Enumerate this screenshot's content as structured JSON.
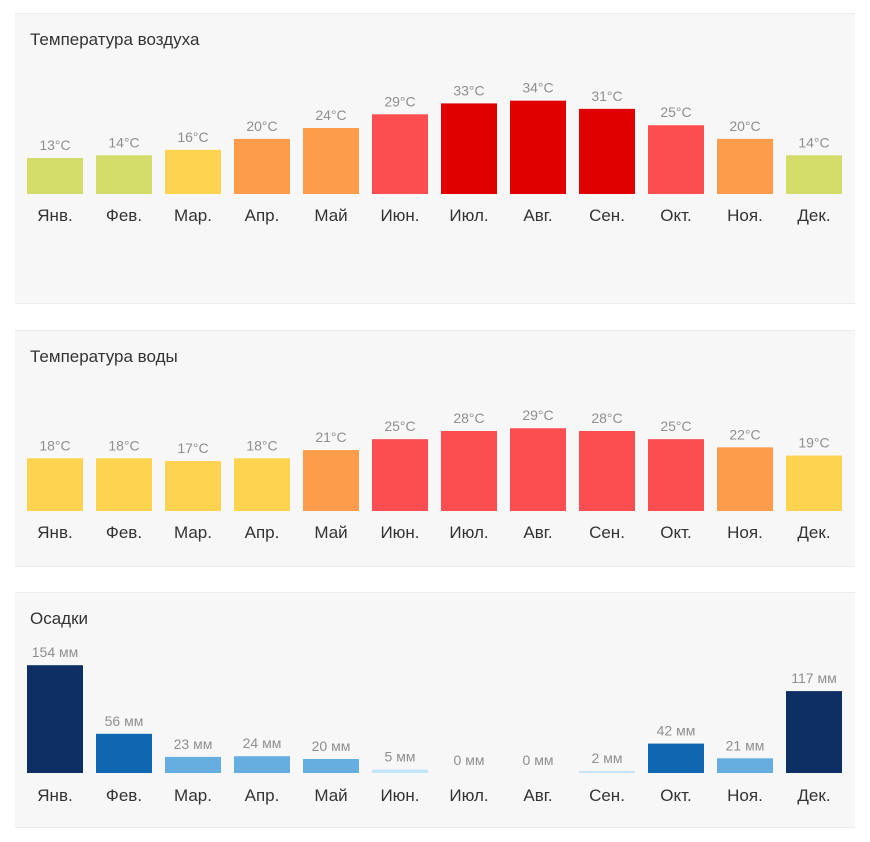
{
  "chart_data": [
    {
      "type": "bar",
      "title": "Температура воздуха",
      "categories": [
        "Янв.",
        "Фев.",
        "Мар.",
        "Апр.",
        "Май",
        "Июн.",
        "Июл.",
        "Авг.",
        "Сен.",
        "Окт.",
        "Ноя.",
        "Дек."
      ],
      "values": [
        13,
        14,
        16,
        20,
        24,
        29,
        33,
        34,
        31,
        25,
        20,
        14
      ],
      "labels": [
        "13°C",
        "14°C",
        "16°C",
        "20°C",
        "24°C",
        "29°C",
        "33°C",
        "34°C",
        "31°C",
        "25°C",
        "20°C",
        "14°C"
      ],
      "colors": [
        "#d4dc6a",
        "#d4dc6a",
        "#fdd34f",
        "#fd9c4a",
        "#fd9c4a",
        "#fc4d51",
        "#e00000",
        "#e00000",
        "#e00000",
        "#fc4d51",
        "#fd9c4a",
        "#d4dc6a"
      ],
      "unit": "°C",
      "xlabel": "",
      "ylabel": ""
    },
    {
      "type": "bar",
      "title": "Температура воды",
      "categories": [
        "Янв.",
        "Фев.",
        "Мар.",
        "Апр.",
        "Май",
        "Июн.",
        "Июл.",
        "Авг.",
        "Сен.",
        "Окт.",
        "Ноя.",
        "Дек."
      ],
      "values": [
        18,
        18,
        17,
        18,
        21,
        25,
        28,
        29,
        28,
        25,
        22,
        19
      ],
      "labels": [
        "18°C",
        "18°C",
        "17°C",
        "18°C",
        "21°C",
        "25°C",
        "28°C",
        "29°C",
        "28°C",
        "25°C",
        "22°C",
        "19°C"
      ],
      "colors": [
        "#fdd34f",
        "#fdd34f",
        "#fdd34f",
        "#fdd34f",
        "#fd9c4a",
        "#fc4d51",
        "#fc4d51",
        "#fc4d51",
        "#fc4d51",
        "#fc4d51",
        "#fd9c4a",
        "#fdd34f"
      ],
      "unit": "°C",
      "xlabel": "",
      "ylabel": ""
    },
    {
      "type": "bar",
      "title": "Осадки",
      "categories": [
        "Янв.",
        "Фев.",
        "Мар.",
        "Апр.",
        "Май",
        "Июн.",
        "Июл.",
        "Авг.",
        "Сен.",
        "Окт.",
        "Ноя.",
        "Дек."
      ],
      "values": [
        154,
        56,
        23,
        24,
        20,
        5,
        0,
        0,
        2,
        42,
        21,
        117
      ],
      "labels": [
        "154 мм",
        "56 мм",
        "23 мм",
        "24 мм",
        "20 мм",
        "5 мм",
        "0 мм",
        "0 мм",
        "2 мм",
        "42 мм",
        "21 мм",
        "117 мм"
      ],
      "colors": [
        "#0d2f63",
        "#0e67b0",
        "#66aee0",
        "#66aee0",
        "#66aee0",
        "#c6e4f7",
        "#c6e4f7",
        "#c6e4f7",
        "#c6e4f7",
        "#0e67b0",
        "#66aee0",
        "#0d2f63"
      ],
      "unit": "мм",
      "xlabel": "",
      "ylabel": ""
    }
  ]
}
